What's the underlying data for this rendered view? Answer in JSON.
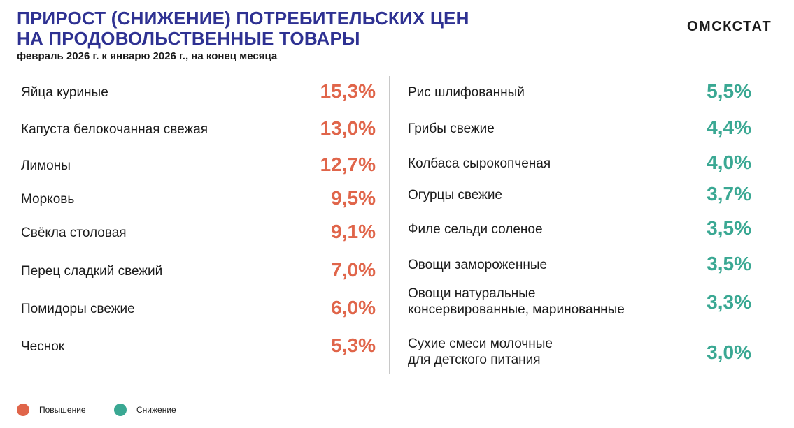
{
  "header": {
    "title_line1": "ПРИРОСТ (СНИЖЕНИЕ) ПОТРЕБИТЕЛЬСКИХ ЦЕН",
    "title_line2": "НА ПРОДОВОЛЬСТВЕННЫЕ ТОВАРЫ",
    "subtitle": "февраль 2026 г. к январю 2026 г., на конец месяца",
    "brand": "ОМСКСТАТ"
  },
  "colors": {
    "increase": "#e0654a",
    "decrease": "#3aa893",
    "title": "#2e3192"
  },
  "legend": {
    "increase": "Повышение",
    "decrease": "Снижение"
  },
  "chart_data": {
    "type": "table",
    "title": "ПРИРОСТ (СНИЖЕНИЕ) ПОТРЕБИТЕЛЬСКИХ ЦЕН НА ПРОДОВОЛЬСТВЕННЫЕ ТОВАРЫ",
    "subtitle": "февраль 2026 г. к январю 2026 г., на конец месяца",
    "unit": "%",
    "series": [
      {
        "name": "Повышение",
        "items": [
          {
            "label": "Яйца куриные",
            "value": 15.3,
            "display": "15,3%"
          },
          {
            "label": "Капуста белокочанная свежая",
            "value": 13.0,
            "display": "13,0%"
          },
          {
            "label": "Лимоны",
            "value": 12.7,
            "display": "12,7%"
          },
          {
            "label": "Морковь",
            "value": 9.5,
            "display": "9,5%"
          },
          {
            "label": "Свёкла столовая",
            "value": 9.1,
            "display": "9,1%"
          },
          {
            "label": "Перец сладкий свежий",
            "value": 7.0,
            "display": "7,0%"
          },
          {
            "label": "Помидоры свежие",
            "value": 6.0,
            "display": "6,0%"
          },
          {
            "label": "Чеснок",
            "value": 5.3,
            "display": "5,3%"
          }
        ]
      },
      {
        "name": "Снижение",
        "items": [
          {
            "label": "Рис шлифованный",
            "value": 5.5,
            "display": "5,5%"
          },
          {
            "label": "Грибы свежие",
            "value": 4.4,
            "display": "4,4%"
          },
          {
            "label": "Колбаса сырокопченая",
            "value": 4.0,
            "display": "4,0%"
          },
          {
            "label": "Огурцы свежие",
            "value": 3.7,
            "display": "3,7%"
          },
          {
            "label": "Филе сельди соленое",
            "value": 3.5,
            "display": "3,5%"
          },
          {
            "label": "Овощи замороженные",
            "value": 3.5,
            "display": "3,5%"
          },
          {
            "label": "Овощи натуральные\nконсервированные, маринованные",
            "value": 3.3,
            "display": "3,3%"
          },
          {
            "label": "Сухие смеси молочные\nдля детского питания",
            "value": 3.0,
            "display": "3,0%"
          }
        ]
      }
    ]
  }
}
